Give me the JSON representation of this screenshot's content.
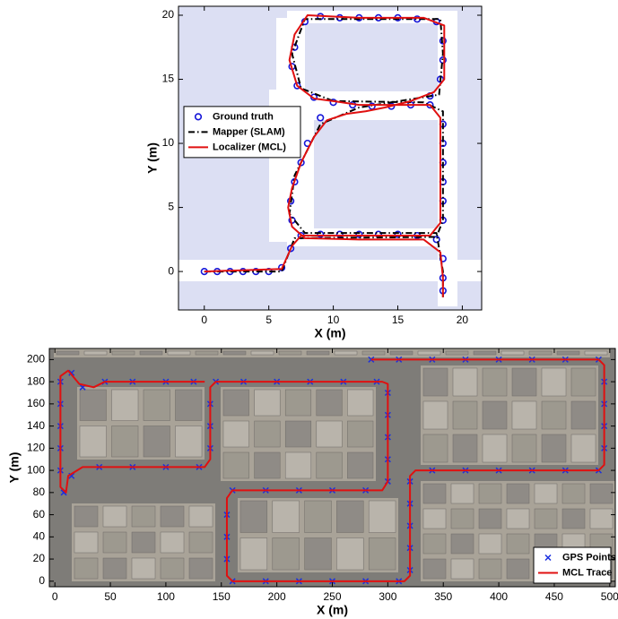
{
  "chart_data": [
    {
      "type": "line",
      "x_label": "X (m)",
      "y_label": "Y (m)",
      "xlim": [
        -2,
        21.5
      ],
      "ylim": [
        -3,
        20.7
      ],
      "xticks": [
        0,
        5,
        10,
        15,
        20
      ],
      "yticks": [
        0,
        5,
        10,
        15,
        20
      ],
      "legend": "center left",
      "series": [
        {
          "name": "Ground truth",
          "color": "#1515d8",
          "marker": "o",
          "x": [
            0,
            1,
            2,
            3,
            4,
            5,
            6,
            6.7,
            7.5,
            9,
            10.5,
            12,
            13.5,
            15,
            16.5,
            18,
            18.5,
            18.5,
            18.5,
            18.5,
            18.5,
            18.5,
            17.5,
            16,
            14.5,
            13,
            11.5,
            10,
            8.5,
            7.2,
            6.8,
            7,
            7.8,
            9,
            10.5,
            12,
            13.5,
            15,
            16.5,
            18,
            18.5,
            18.5,
            18.3,
            17.5,
            9,
            8,
            7.5,
            7,
            6.7,
            6.8,
            18.5,
            18.5,
            18.5
          ],
          "values": [
            0,
            0,
            0,
            0,
            0,
            0,
            0.3,
            1.8,
            2.8,
            2.9,
            2.9,
            2.9,
            2.9,
            2.9,
            2.8,
            2.5,
            4,
            5.5,
            7,
            8.5,
            10,
            11.5,
            13,
            13,
            12.9,
            12.9,
            13,
            13.2,
            13.6,
            14.5,
            16,
            17.5,
            19.5,
            19.9,
            19.8,
            19.8,
            19.8,
            19.8,
            19.7,
            19.5,
            18,
            16.5,
            15,
            13.7,
            12,
            10,
            8.5,
            7,
            5.5,
            4,
            1,
            -0.5,
            -1.5
          ]
        },
        {
          "name": "Mapper (SLAM)",
          "color": "#000000",
          "linestyle": "-.",
          "x": [
            0,
            6,
            7,
            18,
            18.5,
            18.5,
            17,
            10,
            7.5,
            6.8,
            7.8,
            18.3,
            18.5,
            18.2,
            12,
            9,
            7,
            6.6,
            7.8,
            18,
            18.5,
            18.5
          ],
          "values": [
            0,
            0,
            2.6,
            2.7,
            4,
            12.5,
            13.2,
            13.3,
            14.3,
            17,
            19.7,
            19.7,
            17,
            13.8,
            12.8,
            11.5,
            7.5,
            4.5,
            3,
            3,
            0,
            -2
          ]
        },
        {
          "name": "Localizer (MCL)",
          "color": "#e01010",
          "linestyle": "-",
          "x": [
            0,
            6,
            6.8,
            7.5,
            17.5,
            18.3,
            18.3,
            17.5,
            12,
            10,
            8.5,
            7.2,
            6.6,
            7,
            8,
            12,
            17,
            18.6,
            18.6,
            17.8,
            16,
            14,
            12.5,
            11,
            9.5,
            8.5,
            7.5,
            6.8,
            6.5,
            6.8,
            7.8,
            12,
            17,
            18.3,
            18.5,
            18.5
          ],
          "values": [
            0,
            0.2,
            2,
            2.8,
            2.8,
            3.8,
            12,
            13,
            13,
            13.3,
            13.5,
            14.5,
            16.5,
            18.5,
            20,
            19.8,
            19.8,
            19.2,
            15,
            14,
            13.3,
            12.8,
            12.5,
            12.3,
            11.8,
            10.5,
            8.5,
            6.5,
            5,
            3.5,
            2.6,
            2.5,
            2.5,
            1.5,
            -0.5,
            -2
          ]
        }
      ]
    },
    {
      "type": "line",
      "x_label": "X (m)",
      "y_label": "Y (m)",
      "xlim": [
        -5,
        505
      ],
      "ylim": [
        -5,
        210
      ],
      "xticks": [
        0,
        50,
        100,
        150,
        200,
        250,
        300,
        350,
        400,
        450,
        500
      ],
      "yticks": [
        0,
        20,
        40,
        60,
        80,
        100,
        120,
        140,
        160,
        180,
        200
      ],
      "legend": "lower right",
      "series": [
        {
          "name": "GPS Points",
          "color": "#1a2fe0",
          "marker": "x",
          "x": [
            285,
            310,
            340,
            370,
            400,
            430,
            460,
            490,
            495,
            495,
            495,
            495,
            490,
            460,
            430,
            400,
            370,
            340,
            320,
            320,
            320,
            320,
            320,
            310,
            280,
            250,
            220,
            190,
            160,
            155,
            155,
            155,
            160,
            190,
            220,
            250,
            280,
            300,
            300,
            300,
            300,
            300,
            290,
            260,
            230,
            200,
            170,
            145,
            140,
            140,
            140,
            130,
            100,
            70,
            40,
            15,
            8,
            5,
            5,
            5,
            5,
            5,
            15,
            25,
            45,
            70,
            100,
            125
          ],
          "values": [
            200,
            200,
            200,
            200,
            200,
            200,
            200,
            200,
            180,
            160,
            140,
            120,
            100,
            100,
            100,
            100,
            100,
            100,
            90,
            70,
            50,
            30,
            10,
            0,
            0,
            0,
            0,
            0,
            0,
            20,
            40,
            60,
            82,
            82,
            82,
            82,
            82,
            90,
            110,
            130,
            150,
            170,
            180,
            180,
            180,
            180,
            180,
            180,
            160,
            140,
            120,
            103,
            103,
            103,
            103,
            95,
            80,
            100,
            120,
            140,
            160,
            180,
            188,
            175,
            180,
            180,
            180,
            180
          ]
        },
        {
          "name": "MCL Trace",
          "color": "#e01010",
          "linestyle": "-",
          "x": [
            285,
            490,
            495,
            495,
            490,
            325,
            320,
            320,
            315,
            160,
            155,
            155,
            160,
            295,
            300,
            300,
            295,
            145,
            140,
            140,
            135,
            25,
            12,
            10,
            5,
            5,
            12,
            22,
            35,
            45,
            135
          ],
          "values": [
            200,
            200,
            195,
            105,
            100,
            100,
            95,
            5,
            0,
            0,
            5,
            75,
            82,
            82,
            90,
            178,
            180,
            180,
            175,
            110,
            103,
            103,
            95,
            80,
            85,
            185,
            190,
            178,
            175,
            180,
            180
          ]
        }
      ]
    }
  ]
}
